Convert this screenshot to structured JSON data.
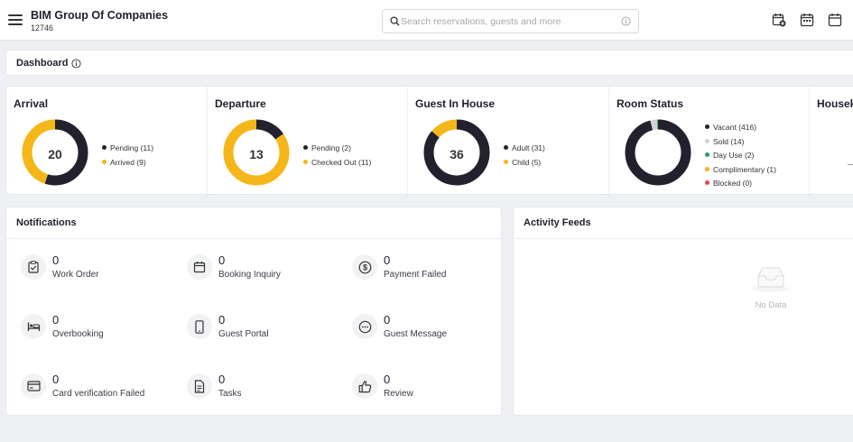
{
  "header": {
    "company_name": "BIM Group Of Companies",
    "company_code": "12746",
    "search_placeholder": "Search reservations, guests and more"
  },
  "dashboard": {
    "title": "Dashboard"
  },
  "stats": {
    "arrival": {
      "title": "Arrival",
      "total": "20",
      "legend": [
        {
          "label": "Pending",
          "count": "(11)",
          "value": 11,
          "color": "#23212e"
        },
        {
          "label": "Arrived",
          "count": "(9)",
          "value": 9,
          "color": "#f5b619"
        }
      ]
    },
    "departure": {
      "title": "Departure",
      "total": "13",
      "legend": [
        {
          "label": "Pending",
          "count": "(2)",
          "value": 2,
          "color": "#23212e"
        },
        {
          "label": "Checked Out",
          "count": "(11)",
          "value": 11,
          "color": "#f5b619"
        }
      ]
    },
    "guest_in_house": {
      "title": "Guest In House",
      "total": "36",
      "legend": [
        {
          "label": "Adult",
          "count": "(31)",
          "value": 31,
          "color": "#23212e"
        },
        {
          "label": "Child",
          "count": "(5)",
          "value": 5,
          "color": "#f5b619"
        }
      ]
    },
    "room_status": {
      "title": "Room Status",
      "legend": [
        {
          "label": "Vacant",
          "count": "(416)",
          "value": 416,
          "color": "#23212e"
        },
        {
          "label": "Sold",
          "count": "(14)",
          "value": 14,
          "color": "#d0d2d6"
        },
        {
          "label": "Day Use",
          "count": "(2)",
          "value": 2,
          "color": "#22a06b"
        },
        {
          "label": "Complimentary",
          "count": "(1)",
          "value": 1,
          "color": "#f5b619"
        },
        {
          "label": "Blocked",
          "count": "(0)",
          "value": 0,
          "color": "#e5484d"
        }
      ]
    },
    "housekeeping": {
      "title": "Housek"
    }
  },
  "notifications": {
    "title": "Notifications",
    "items": [
      {
        "count": "0",
        "label": "Work Order",
        "icon": "clipboard-check-icon"
      },
      {
        "count": "0",
        "label": "Booking Inquiry",
        "icon": "calendar-icon"
      },
      {
        "count": "0",
        "label": "Payment Failed",
        "icon": "dollar-icon"
      },
      {
        "count": "0",
        "label": "Overbooking",
        "icon": "bed-icon"
      },
      {
        "count": "0",
        "label": "Guest Portal",
        "icon": "mobile-icon"
      },
      {
        "count": "0",
        "label": "Guest Message",
        "icon": "chat-icon"
      },
      {
        "count": "0",
        "label": "Card verification Failed",
        "icon": "credit-card-icon"
      },
      {
        "count": "0",
        "label": "Tasks",
        "icon": "document-icon"
      },
      {
        "count": "0",
        "label": "Review",
        "icon": "thumbs-up-icon"
      }
    ]
  },
  "activity": {
    "title": "Activity Feeds",
    "empty_text": "No Data"
  }
}
